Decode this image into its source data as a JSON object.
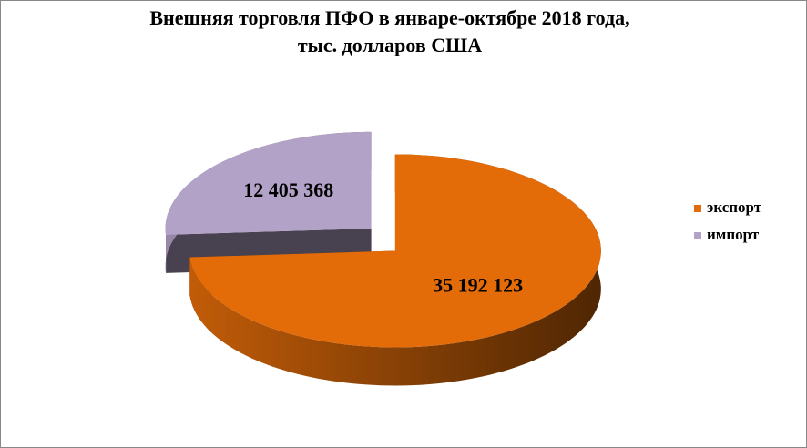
{
  "chart_data": {
    "type": "pie",
    "title": [
      "Внешняя торговля ПФО в январе-октябре 2018 года,",
      "тыс. долларов США"
    ],
    "categories": [
      "экспорт",
      "импорт"
    ],
    "values": [
      35192123,
      12405368
    ],
    "value_labels": [
      "35 192 123",
      "12 405 368"
    ],
    "colors": [
      "#e36c09",
      "#b3a2c7"
    ],
    "legend": "right"
  }
}
